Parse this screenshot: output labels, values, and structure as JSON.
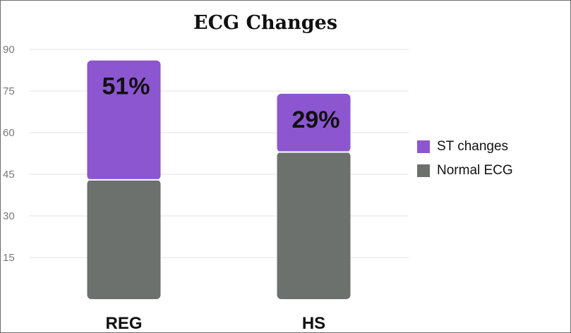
{
  "chart_data": {
    "type": "bar",
    "stacked": true,
    "title": "ECG Changes",
    "xlabel": "",
    "ylabel": "",
    "categories": [
      "REG",
      "HS"
    ],
    "series": [
      {
        "name": "Normal ECG",
        "color": "#6c716e",
        "values": [
          43,
          53
        ]
      },
      {
        "name": "ST changes",
        "color": "#8c56d0",
        "values": [
          43,
          21
        ]
      }
    ],
    "data_labels": [
      {
        "category": "REG",
        "series": "ST changes",
        "text": "51%"
      },
      {
        "category": "HS",
        "series": "ST changes",
        "text": "29%"
      }
    ],
    "ylim": [
      0,
      90
    ],
    "yticks": [
      15,
      30,
      45,
      60,
      75,
      90
    ],
    "ytick_labels": [
      "15",
      "30",
      "45",
      "60",
      "75",
      "90"
    ],
    "grid": true,
    "legend_position": "right"
  }
}
